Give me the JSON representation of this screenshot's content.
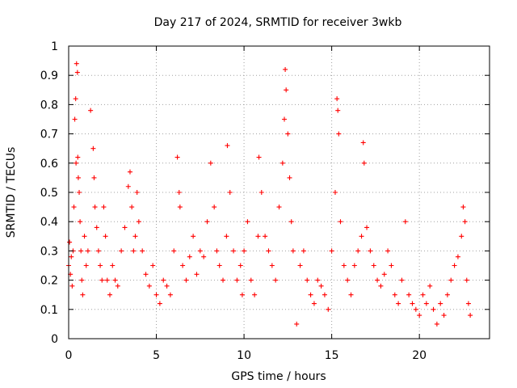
{
  "chart_data": {
    "type": "scatter",
    "title": "Day 217 of 2024, SRMTID for receiver 3wkb",
    "xlabel": "GPS time / hours",
    "ylabel": "SRMTID / TECUs",
    "xlim": [
      0,
      24
    ],
    "ylim": [
      0,
      1
    ],
    "x_ticks": [
      0,
      5,
      10,
      15,
      20
    ],
    "x_tick_labels": [
      "0",
      "5",
      "10",
      "15",
      "20"
    ],
    "y_ticks": [
      0,
      0.1,
      0.2,
      0.3,
      0.4,
      0.5,
      0.6,
      0.7,
      0.8,
      0.9,
      1
    ],
    "y_tick_labels": [
      "0",
      "0.1",
      "0.2",
      "0.3",
      "0.4",
      "0.5",
      "0.6",
      "0.7",
      "0.8",
      "0.9",
      "1"
    ],
    "grid": true,
    "marker": "+",
    "color": "#ff0000",
    "series": [
      {
        "name": "SRMTID",
        "x": [
          0.0,
          0.05,
          0.1,
          0.15,
          0.2,
          0.25,
          0.3,
          0.35,
          0.4,
          0.42,
          0.45,
          0.5,
          0.52,
          0.55,
          0.6,
          0.65,
          0.7,
          0.75,
          0.8,
          0.9,
          1.0,
          1.1,
          1.25,
          1.4,
          1.45,
          1.5,
          1.6,
          1.7,
          1.8,
          1.9,
          2.0,
          2.1,
          2.2,
          2.35,
          2.5,
          2.65,
          2.8,
          3.0,
          3.2,
          3.4,
          3.5,
          3.6,
          3.7,
          3.8,
          3.9,
          4.0,
          4.2,
          4.4,
          4.6,
          4.8,
          5.0,
          5.2,
          5.4,
          5.6,
          5.8,
          6.0,
          6.2,
          6.3,
          6.35,
          6.5,
          6.7,
          6.9,
          7.1,
          7.3,
          7.5,
          7.7,
          7.9,
          8.1,
          8.3,
          8.45,
          8.6,
          8.8,
          9.0,
          9.05,
          9.2,
          9.4,
          9.6,
          9.8,
          9.9,
          10.0,
          10.2,
          10.4,
          10.6,
          10.8,
          10.85,
          11.0,
          11.2,
          11.4,
          11.6,
          11.8,
          12.0,
          12.2,
          12.3,
          12.35,
          12.4,
          12.5,
          12.6,
          12.7,
          12.8,
          13.0,
          13.2,
          13.4,
          13.6,
          13.8,
          14.0,
          14.2,
          14.4,
          14.6,
          14.8,
          15.0,
          15.2,
          15.3,
          15.35,
          15.4,
          15.5,
          15.7,
          15.9,
          16.1,
          16.3,
          16.5,
          16.7,
          16.8,
          16.85,
          17.0,
          17.2,
          17.4,
          17.6,
          17.8,
          18.0,
          18.2,
          18.4,
          18.6,
          18.8,
          19.0,
          19.2,
          19.4,
          19.6,
          19.8,
          20.0,
          20.2,
          20.4,
          20.6,
          20.8,
          21.0,
          21.2,
          21.4,
          21.6,
          21.8,
          22.0,
          22.2,
          22.4,
          22.5,
          22.6,
          22.7,
          22.8,
          22.9
        ],
        "y": [
          0.25,
          0.33,
          0.22,
          0.28,
          0.18,
          0.3,
          0.45,
          0.75,
          0.82,
          0.6,
          0.94,
          0.91,
          0.62,
          0.55,
          0.5,
          0.4,
          0.3,
          0.2,
          0.15,
          0.35,
          0.25,
          0.3,
          0.78,
          0.65,
          0.55,
          0.45,
          0.38,
          0.3,
          0.25,
          0.2,
          0.45,
          0.35,
          0.2,
          0.15,
          0.25,
          0.2,
          0.18,
          0.3,
          0.38,
          0.52,
          0.57,
          0.45,
          0.3,
          0.35,
          0.5,
          0.4,
          0.3,
          0.22,
          0.18,
          0.25,
          0.15,
          0.12,
          0.2,
          0.18,
          0.15,
          0.3,
          0.62,
          0.5,
          0.45,
          0.25,
          0.2,
          0.28,
          0.35,
          0.22,
          0.3,
          0.28,
          0.4,
          0.6,
          0.45,
          0.3,
          0.25,
          0.2,
          0.35,
          0.66,
          0.5,
          0.3,
          0.2,
          0.25,
          0.15,
          0.3,
          0.4,
          0.2,
          0.15,
          0.35,
          0.62,
          0.5,
          0.35,
          0.3,
          0.25,
          0.2,
          0.45,
          0.6,
          0.75,
          0.92,
          0.85,
          0.7,
          0.55,
          0.4,
          0.3,
          0.05,
          0.25,
          0.3,
          0.2,
          0.15,
          0.12,
          0.2,
          0.18,
          0.15,
          0.1,
          0.3,
          0.5,
          0.82,
          0.78,
          0.7,
          0.4,
          0.25,
          0.2,
          0.15,
          0.25,
          0.3,
          0.35,
          0.67,
          0.6,
          0.38,
          0.3,
          0.25,
          0.2,
          0.18,
          0.22,
          0.3,
          0.25,
          0.15,
          0.12,
          0.2,
          0.4,
          0.15,
          0.12,
          0.1,
          0.08,
          0.15,
          0.12,
          0.18,
          0.1,
          0.05,
          0.12,
          0.08,
          0.15,
          0.2,
          0.25,
          0.28,
          0.35,
          0.45,
          0.4,
          0.2,
          0.12,
          0.08
        ]
      }
    ]
  }
}
